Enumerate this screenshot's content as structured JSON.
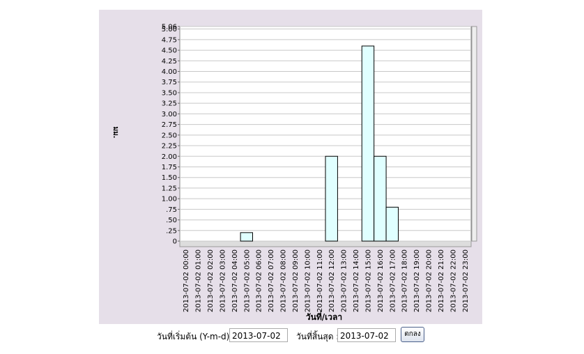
{
  "chart_data": {
    "type": "bar",
    "ylabel": "มม.",
    "xlabel": "วันที่/เวลา",
    "categories": [
      "2013-07-02 00:00",
      "2013-07-02 01:00",
      "2013-07-02 02:00",
      "2013-07-02 03:00",
      "2013-07-02 04:00",
      "2013-07-02 05:00",
      "2013-07-02 06:00",
      "2013-07-02 07:00",
      "2013-07-02 08:00",
      "2013-07-02 09:00",
      "2013-07-02 10:00",
      "2013-07-02 11:00",
      "2013-07-02 12:00",
      "2013-07-02 13:00",
      "2013-07-02 14:00",
      "2013-07-02 15:00",
      "2013-07-02 16:00",
      "2013-07-02 17:00",
      "2013-07-02 18:00",
      "2013-07-02 19:00",
      "2013-07-02 20:00",
      "2013-07-02 21:00",
      "2013-07-02 22:00",
      "2013-07-02 23:00"
    ],
    "values": [
      0,
      0,
      0,
      0,
      0,
      0.2,
      0,
      0,
      0,
      0,
      0,
      0,
      2.0,
      0,
      0,
      4.6,
      2.0,
      0.8,
      0,
      0,
      0,
      0,
      0,
      0
    ],
    "color": "#e0ffff",
    "ylim": [
      0,
      5.06
    ],
    "yticks": [
      0,
      {
        "value": 0.25,
        "label": ".25"
      },
      {
        "value": 0.5,
        "label": ".50"
      },
      {
        "value": 0.75,
        "label": ".75"
      },
      {
        "value": 1,
        "label": "1.00"
      },
      1.25,
      {
        "value": 1.5,
        "label": "1.50"
      },
      1.75,
      {
        "value": 2,
        "label": "2.00"
      },
      2.25,
      {
        "value": 2.5,
        "label": "2.50"
      },
      2.75,
      {
        "value": 3,
        "label": "3.00"
      },
      3.25,
      {
        "value": 3.5,
        "label": "3.50"
      },
      3.75,
      {
        "value": 4,
        "label": "4.00"
      },
      4.25,
      {
        "value": 4.5,
        "label": "4.50"
      },
      4.75,
      {
        "value": 5,
        "label": "5.00"
      },
      5.06
    ],
    "grid": true
  },
  "form": {
    "start_label": "วันที่เริ่มต้น (Y-m-d):",
    "start_value": "2013-07-02",
    "end_label": "วันที่สิ้นสุด :",
    "end_value": "2013-07-02",
    "button": "ตกลง"
  }
}
